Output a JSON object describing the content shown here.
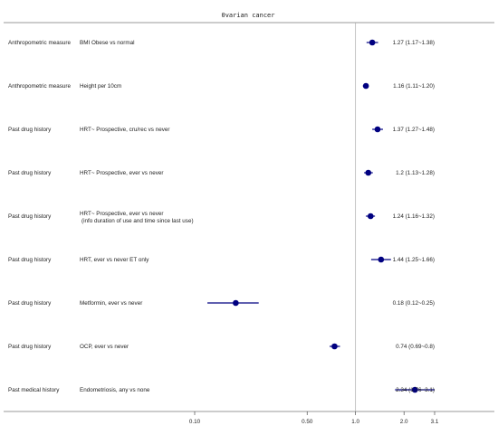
{
  "chart_data": {
    "type": "forest",
    "title": "0varian cancer",
    "x_scale": "log",
    "xlim": [
      0.1,
      3.1
    ],
    "reference_line": 1.0,
    "x_ticks": [
      {
        "value": 0.1,
        "label": "0.10"
      },
      {
        "value": 0.5,
        "label": "0.50"
      },
      {
        "value": 1.0,
        "label": "1.0"
      },
      {
        "value": 2.0,
        "label": "2.0"
      },
      {
        "value": 3.1,
        "label": "3.1"
      }
    ],
    "point_color": "#000080",
    "rows": [
      {
        "category": "Anthropometric measure",
        "exposure": [
          "BMI Obese vs normal"
        ],
        "estimate": 1.27,
        "lower": 1.17,
        "upper": 1.38,
        "ci_text": "1.27 (1.17~1.38)"
      },
      {
        "category": "Anthropometric measure",
        "exposure": [
          "Height per 10cm"
        ],
        "estimate": 1.16,
        "lower": 1.11,
        "upper": 1.2,
        "ci_text": "1.16 (1.11~1.20)"
      },
      {
        "category": "Past drug history",
        "exposure": [
          "HRT~ Prospective, cru/rec vs never"
        ],
        "estimate": 1.37,
        "lower": 1.27,
        "upper": 1.48,
        "ci_text": "1.37 (1.27~1.48)"
      },
      {
        "category": "Past drug history",
        "exposure": [
          "HRT~ Prospective, ever vs never"
        ],
        "estimate": 1.2,
        "lower": 1.13,
        "upper": 1.28,
        "ci_text": "1.2 (1.13~1.28)"
      },
      {
        "category": "Past drug history",
        "exposure": [
          "HRT~ Prospective, ever vs never",
          "(info duration of use and time since last use)"
        ],
        "estimate": 1.24,
        "lower": 1.16,
        "upper": 1.32,
        "ci_text": "1.24 (1.16~1.32)"
      },
      {
        "category": "Past drug history",
        "exposure": [
          "HRT, ever vs never ET only"
        ],
        "estimate": 1.44,
        "lower": 1.25,
        "upper": 1.66,
        "ci_text": "1.44 (1.25~1.66)"
      },
      {
        "category": "Past drug history",
        "exposure": [
          "Metformin, ever vs never"
        ],
        "estimate": 0.18,
        "lower": 0.12,
        "upper": 0.25,
        "ci_text": "0.18 (0.12~0.25)"
      },
      {
        "category": "Past drug history",
        "exposure": [
          "OCP, ever vs never"
        ],
        "estimate": 0.74,
        "lower": 0.69,
        "upper": 0.8,
        "ci_text": "0.74 (0.69~0.8)"
      },
      {
        "category": "Past medical history",
        "exposure": [
          "Endometriosis, any vs none"
        ],
        "estimate": 2.34,
        "lower": 1.76,
        "upper": 3.1,
        "ci_text": "2.34 (1.76~3.1)"
      }
    ]
  }
}
